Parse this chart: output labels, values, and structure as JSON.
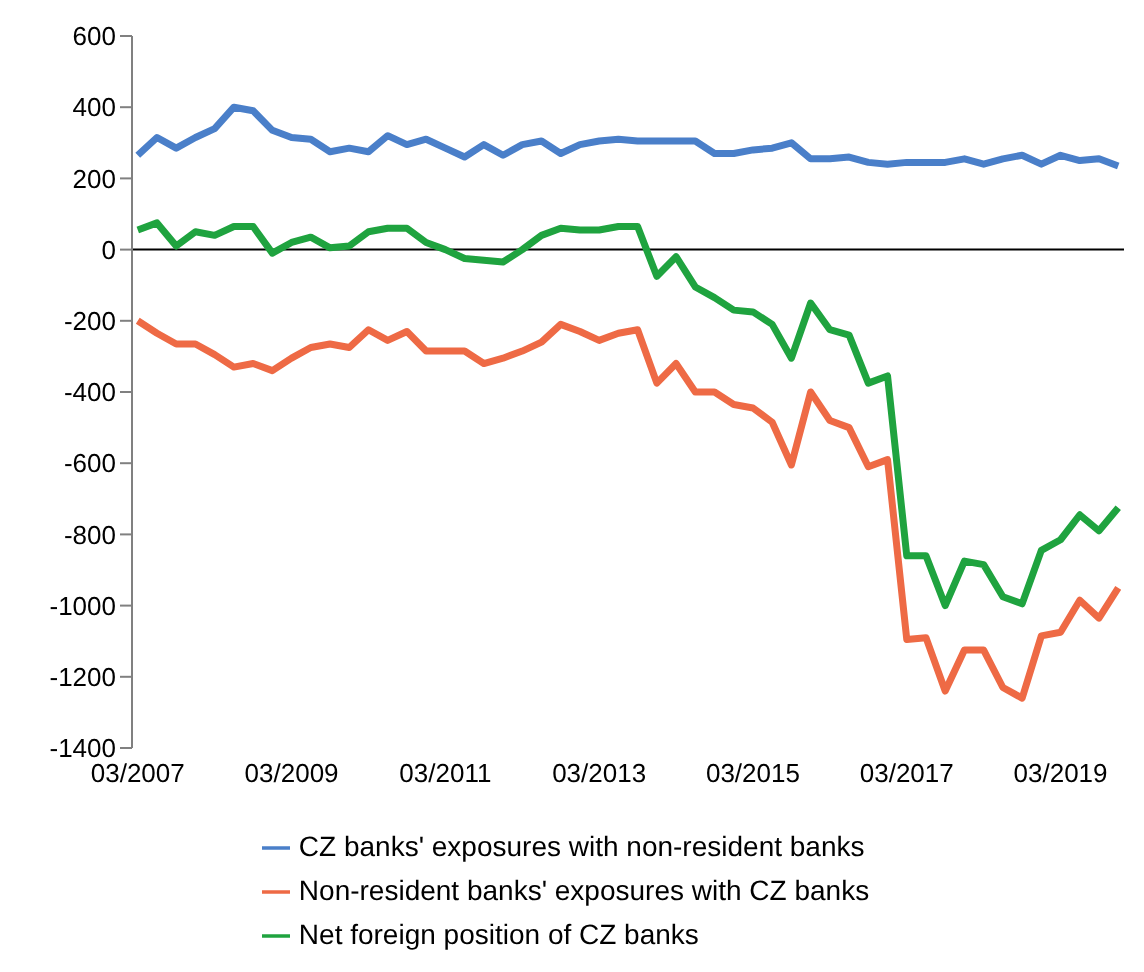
{
  "chart_data": {
    "type": "line",
    "categories": [
      "03/2007",
      null,
      null,
      null,
      null,
      null,
      null,
      null,
      "03/2009",
      null,
      null,
      null,
      null,
      null,
      null,
      null,
      "03/2011",
      null,
      null,
      null,
      null,
      null,
      null,
      null,
      "03/2013",
      null,
      null,
      null,
      null,
      null,
      null,
      null,
      "03/2015",
      null,
      null,
      null,
      null,
      null,
      null,
      null,
      "03/2017",
      null,
      null,
      null,
      null,
      null,
      null,
      null,
      "03/2019",
      null,
      null,
      null
    ],
    "series": [
      {
        "name": "CZ banks' exposures with non-resident banks",
        "color": "#4a7fc9",
        "values": [
          265,
          315,
          285,
          315,
          340,
          400,
          390,
          335,
          315,
          310,
          275,
          285,
          275,
          320,
          295,
          310,
          285,
          260,
          295,
          265,
          295,
          305,
          270,
          295,
          305,
          310,
          305,
          305,
          305,
          305,
          270,
          270,
          280,
          285,
          300,
          255,
          255,
          260,
          245,
          240,
          245,
          245,
          245,
          255,
          240,
          255,
          265,
          240,
          265,
          250,
          255,
          235
        ]
      },
      {
        "name": "Non-resident banks' exposures with CZ banks",
        "color": "#ee6a45",
        "values": [
          -200,
          -235,
          -265,
          -265,
          -295,
          -330,
          -320,
          -340,
          -305,
          -275,
          -265,
          -275,
          -225,
          -255,
          -230,
          -285,
          -285,
          -285,
          -320,
          -305,
          -285,
          -260,
          -210,
          -230,
          -255,
          -235,
          -225,
          -375,
          -320,
          -400,
          -400,
          -435,
          -445,
          -485,
          -605,
          -400,
          -480,
          -500,
          -610,
          -590,
          -1095,
          -1090,
          -1240,
          -1125,
          -1125,
          -1230,
          -1260,
          -1085,
          -1075,
          -985,
          -1035,
          -950
        ]
      },
      {
        "name": "Net foreign position of CZ banks",
        "color": "#1fa33f",
        "values": [
          55,
          75,
          10,
          50,
          40,
          65,
          65,
          -10,
          20,
          35,
          5,
          10,
          50,
          60,
          60,
          20,
          0,
          -25,
          -30,
          -35,
          0,
          40,
          60,
          55,
          55,
          65,
          65,
          -75,
          -20,
          -105,
          -135,
          -170,
          -175,
          -210,
          -305,
          -150,
          -225,
          -240,
          -375,
          -355,
          -860,
          -860,
          -1000,
          -875,
          -885,
          -975,
          -995,
          -845,
          -815,
          -745,
          -790,
          -725
        ]
      }
    ],
    "ylim": [
      -1400,
      600
    ],
    "yticks": [
      -1400,
      -1200,
      -1000,
      -800,
      -600,
      -400,
      -200,
      0,
      200,
      400,
      600
    ],
    "ref_lines": [
      {
        "axis": "y",
        "value": 0,
        "color": "#000000"
      }
    ],
    "grid": false,
    "legend": "bottom",
    "marker": "none",
    "line_style": "solid"
  }
}
